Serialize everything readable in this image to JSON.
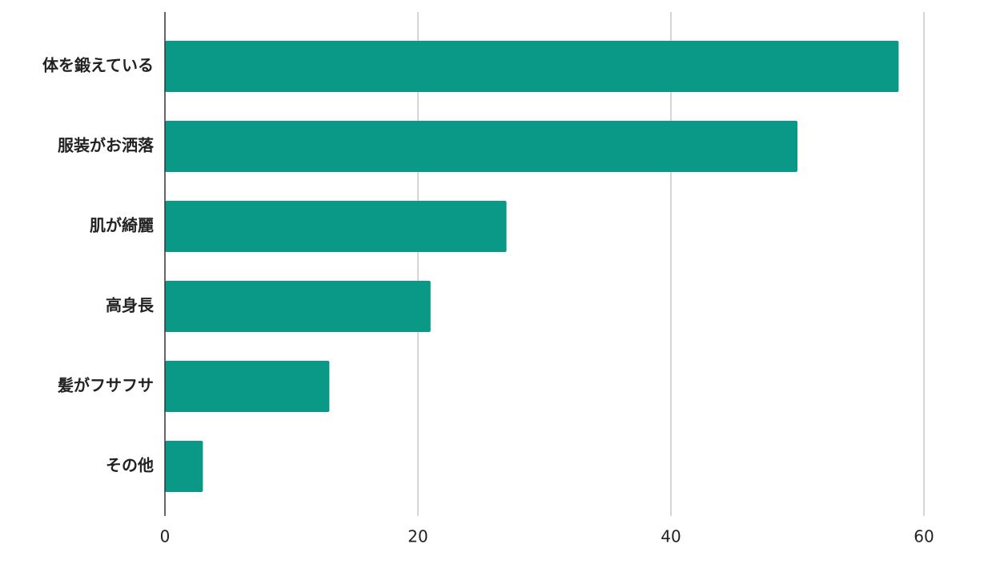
{
  "chart_data": {
    "type": "bar",
    "orientation": "horizontal",
    "categories": [
      "体を鍛えている",
      "服装がお洒落",
      "肌が綺麗",
      "高身長",
      "髪がフサフサ",
      "その他"
    ],
    "values": [
      58,
      50,
      27,
      21,
      13,
      3
    ],
    "color": "#0a9987",
    "xlim": [
      0,
      65
    ],
    "xticks": [
      0,
      20,
      40,
      60
    ],
    "grid": true
  }
}
